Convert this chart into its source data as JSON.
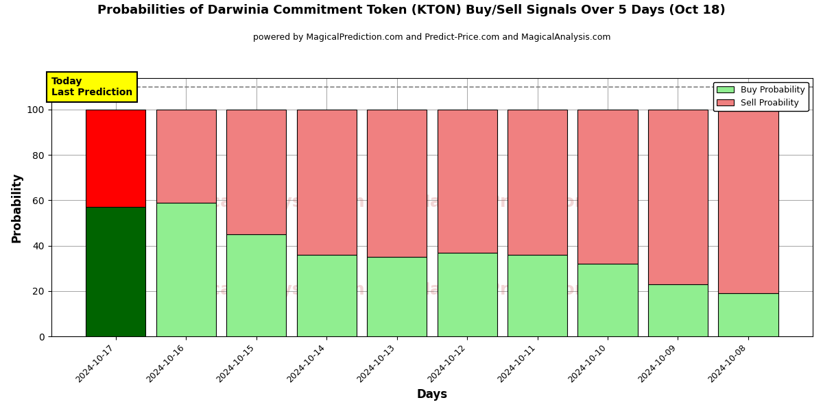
{
  "title": "Probabilities of Darwinia Commitment Token (KTON) Buy/Sell Signals Over 5 Days (Oct 18)",
  "subtitle": "powered by MagicalPrediction.com and Predict-Price.com and MagicalAnalysis.com",
  "xlabel": "Days",
  "ylabel": "Probability",
  "categories": [
    "2024-10-17",
    "2024-10-16",
    "2024-10-15",
    "2024-10-14",
    "2024-10-13",
    "2024-10-12",
    "2024-10-11",
    "2024-10-10",
    "2024-10-09",
    "2024-10-08"
  ],
  "buy_values": [
    57,
    59,
    45,
    36,
    35,
    37,
    36,
    32,
    23,
    19
  ],
  "sell_values": [
    43,
    41,
    55,
    64,
    65,
    63,
    64,
    68,
    77,
    81
  ],
  "today_buy_color": "#006400",
  "today_sell_color": "#ff0000",
  "buy_color": "#90ee90",
  "sell_color": "#f08080",
  "today_label_bg": "#ffff00",
  "today_label_text": "Today\nLast Prediction",
  "legend_buy": "Buy Probability",
  "legend_sell": "Sell Proability",
  "ylim": [
    0,
    114
  ],
  "dashed_line_y": 110,
  "figsize": [
    12,
    6
  ],
  "dpi": 100
}
